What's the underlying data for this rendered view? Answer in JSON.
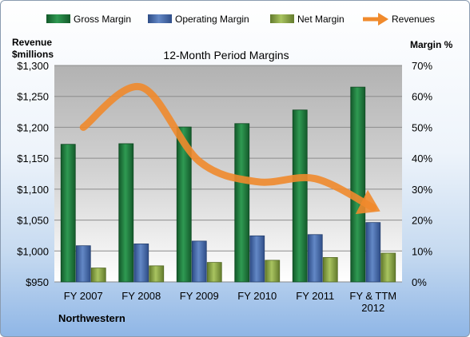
{
  "chart_data": {
    "type": "bar",
    "title": "12-Month Period Margins",
    "categories": [
      "FY 2007",
      "FY 2008",
      "FY 2009",
      "FY 2010",
      "FY 2011",
      "FY & TTM 2012"
    ],
    "series": [
      {
        "name": "Gross Margin",
        "axis": "right",
        "color": "#1e7a3c",
        "values": [
          44.5,
          44.7,
          50.1,
          51.2,
          55.6,
          63.0
        ]
      },
      {
        "name": "Operating Margin",
        "axis": "right",
        "color": "#4a6eab",
        "values": [
          11.7,
          12.3,
          13.2,
          14.9,
          15.3,
          19.2
        ]
      },
      {
        "name": "Net Margin",
        "axis": "right",
        "color": "#8ea74a",
        "values": [
          4.5,
          5.2,
          6.3,
          7.0,
          7.9,
          9.3
        ]
      }
    ],
    "line_series": {
      "name": "Revenues",
      "axis": "left",
      "color": "#f08a2c",
      "values": [
        1200,
        1265,
        1145,
        1112,
        1117,
        1070
      ]
    },
    "left_axis": {
      "label_line1": "Revenue",
      "label_line2": "$millions",
      "min": 950,
      "max": 1300,
      "step": 50,
      "ticks": [
        "$950",
        "$1,000",
        "$1,050",
        "$1,100",
        "$1,150",
        "$1,200",
        "$1,250",
        "$1,300"
      ]
    },
    "right_axis": {
      "label": "Margin %",
      "min": 0,
      "max": 70,
      "step": 10,
      "ticks": [
        "0%",
        "10%",
        "20%",
        "30%",
        "40%",
        "50%",
        "60%",
        "70%"
      ]
    },
    "legend_position": "top",
    "grid": true,
    "company": "Northwestern"
  }
}
